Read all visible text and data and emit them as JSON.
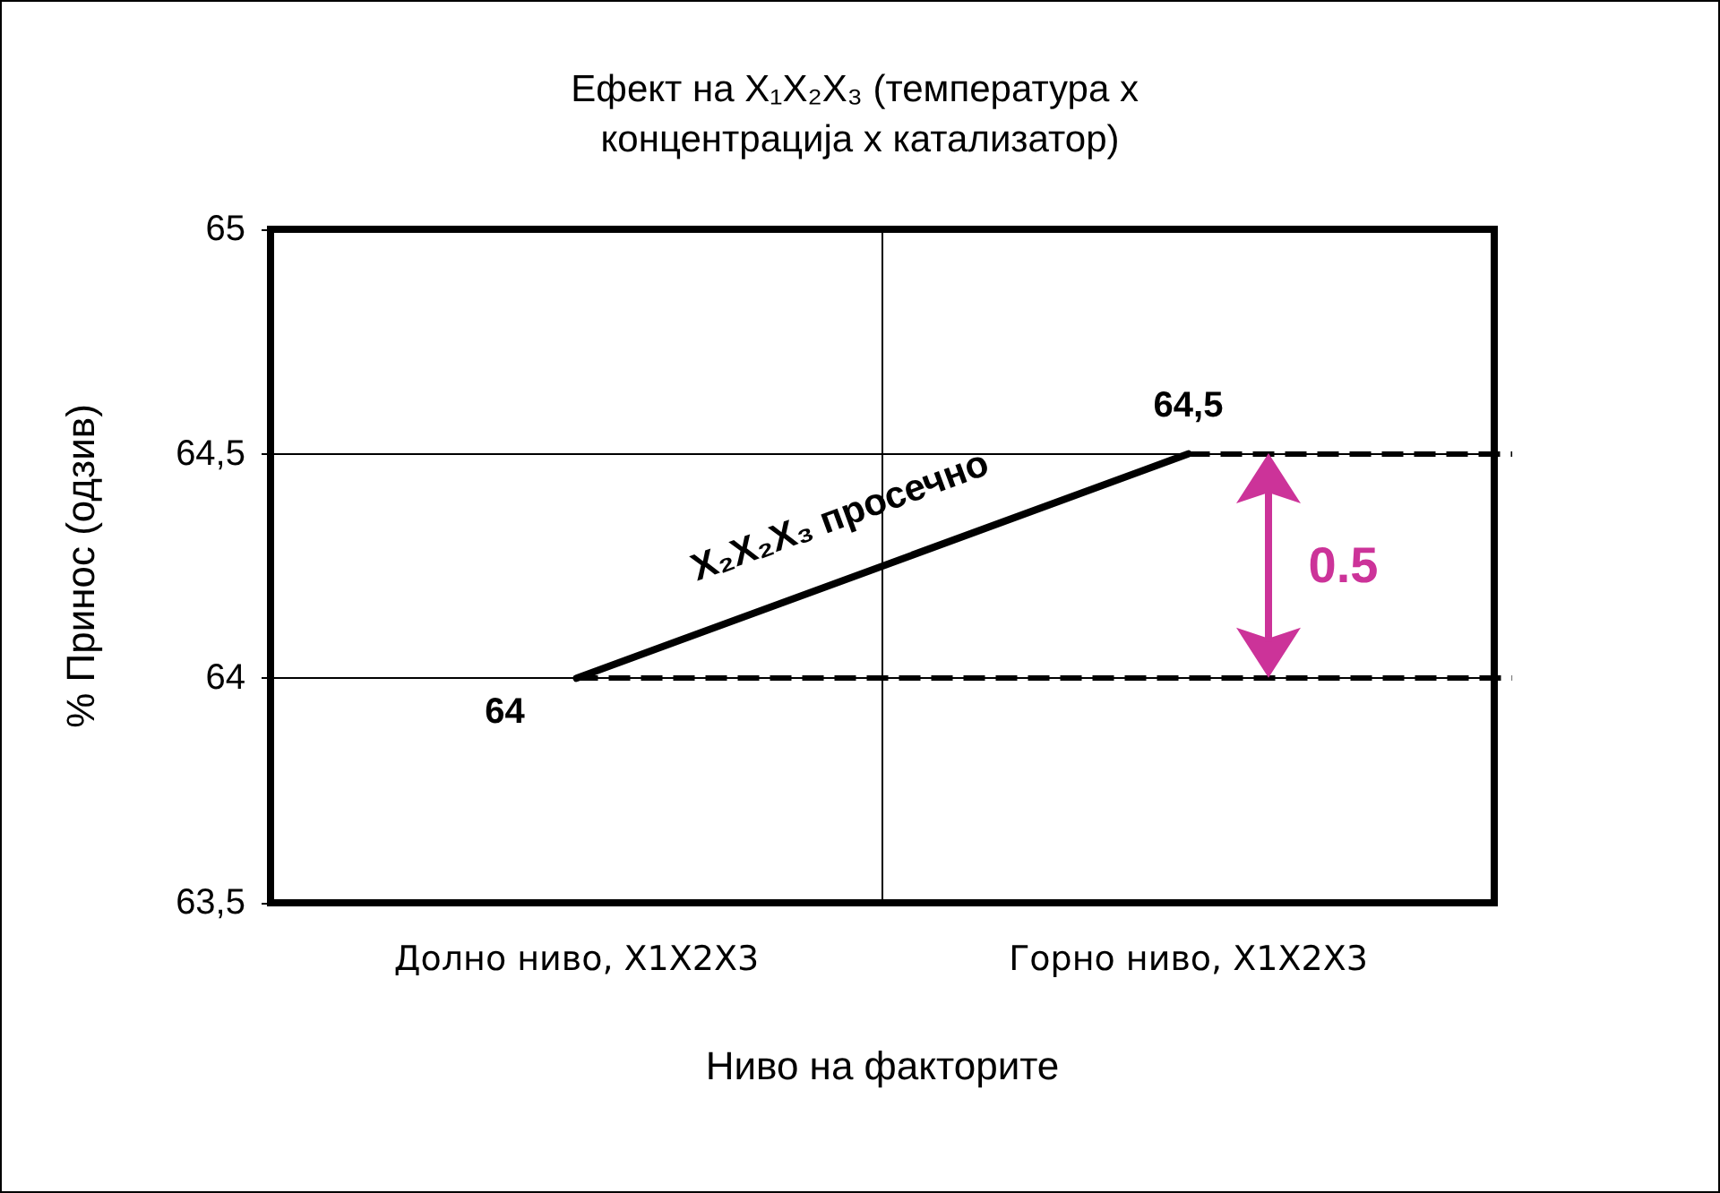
{
  "chart_data": {
    "type": "line",
    "title": "Ефект на X₁X₂X₃ (температура x концентрација x катализатор)",
    "xlabel": "Ниво на факторите",
    "ylabel": "% Принос (одзив)",
    "categories": [
      "Долно ниво, X1X2X3",
      "Горно ниво, X1X2X3"
    ],
    "series": [
      {
        "name": "X₂X₂X₃ просечно",
        "color": "#000000",
        "values": [
          64,
          64.5
        ],
        "value_labels": [
          "64",
          "64,5"
        ]
      }
    ],
    "ylim": [
      63.5,
      65
    ],
    "yticks": [
      {
        "value": 63.5,
        "label": "63,5"
      },
      64,
      {
        "value": 64.5,
        "label": "64,5"
      },
      65
    ],
    "ref_lines": [
      {
        "axis": "y",
        "value": 64,
        "line_style": "dashed"
      },
      {
        "axis": "y",
        "value": 64.5,
        "line_style": "dashed"
      }
    ],
    "annotations": [
      "0.5"
    ],
    "grid": true,
    "marker": "none",
    "line_style": "solid"
  }
}
